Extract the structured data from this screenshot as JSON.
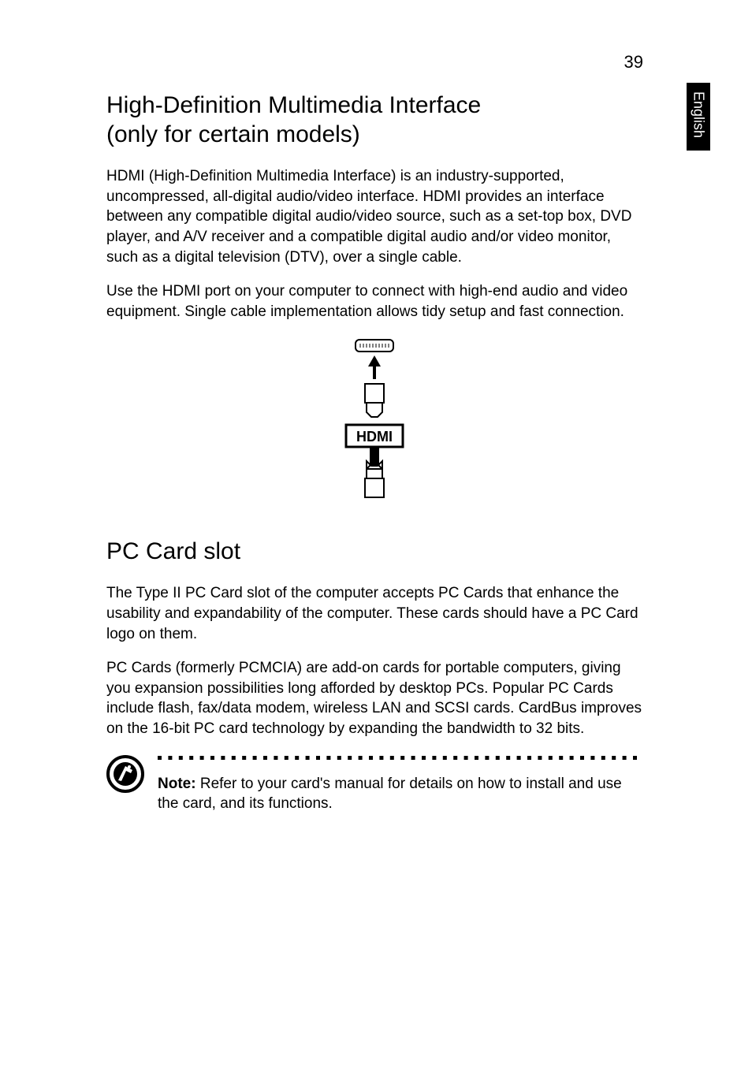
{
  "page_number": "39",
  "side_tab_label": "English",
  "colors": {
    "text": "#000000",
    "background": "#ffffff",
    "tab_bg": "#000000",
    "tab_text": "#ffffff",
    "dot_color": "#000000"
  },
  "typography": {
    "h1_fontsize": 30,
    "body_fontsize": 19,
    "page_num_fontsize": 22,
    "side_tab_fontsize": 18
  },
  "section1": {
    "title": "High-Definition Multimedia Interface\n (only for certain models)",
    "para1": "HDMI (High-Definition Multimedia Interface) is an industry-supported, uncompressed, all-digital audio/video interface. HDMI provides an interface between any compatible digital audio/video source, such as a set-top box, DVD player, and A/V receiver and a compatible digital audio and/or video monitor, such as a digital television (DTV), over a single cable.",
    "para2": "Use the HDMI port on your computer to connect with high-end audio and video equipment. Single cable implementation allows tidy setup and fast connection.",
    "figure_label": "HDMI"
  },
  "section2": {
    "title": "PC Card slot",
    "para1": "The Type II PC Card slot of the computer accepts PC Cards that enhance the usability and expandability of the computer. These cards should have a PC Card logo on them.",
    "para2": "PC Cards (formerly PCMCIA) are add-on cards for portable computers, giving you expansion possibilities long afforded by desktop PCs. Popular PC Cards include flash, fax/data modem, wireless LAN and SCSI cards. CardBus improves on the 16-bit PC card technology by expanding the bandwidth to 32 bits."
  },
  "note": {
    "label": "Note:",
    "text": " Refer to your card's manual for details on how to install and use the card, and its functions.",
    "dot_count": 46,
    "dot_size": 5,
    "dot_spacing": 13.4
  }
}
